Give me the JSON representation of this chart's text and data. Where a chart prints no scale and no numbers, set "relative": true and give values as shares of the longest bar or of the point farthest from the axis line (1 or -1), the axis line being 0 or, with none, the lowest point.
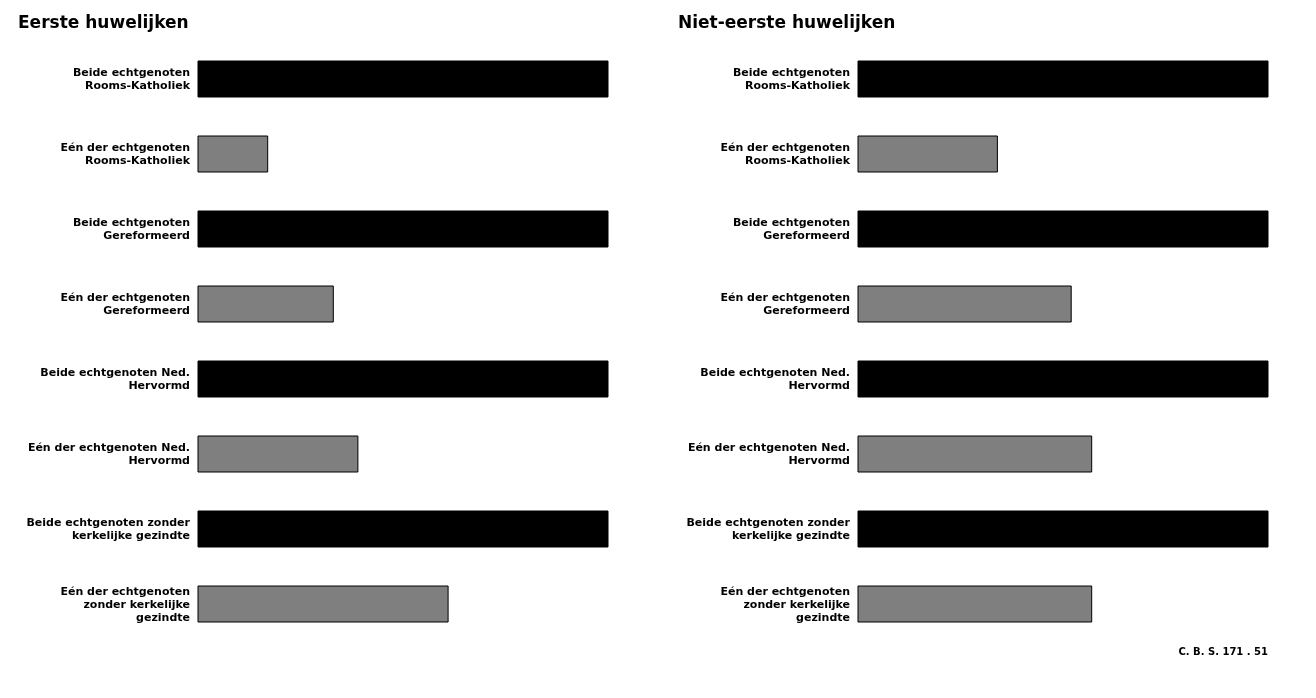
{
  "chart_data": [
    {
      "type": "bar",
      "title": "Eerste huwelijken",
      "orientation": "horizontal",
      "relative": true,
      "categories": [
        "Beide echtgenoten Rooms-Katholiek",
        "Eén der echtgenoten Rooms-Katholiek",
        "Beide echtgenoten Gereformeerd",
        "Eén der echtgenoten Gereformeerd",
        "Beide echtgenoten Ned. Hervormd",
        "Eén der echtgenoten Ned. Hervormd",
        "Beide echtgenoten zonder kerkelijke gezindte",
        "Eén der echtgenoten zonder kerkelijke gezindte"
      ],
      "values": [
        1,
        0.17,
        1,
        0.33,
        1,
        0.39,
        1,
        0.61
      ],
      "colors": [
        "#000000",
        "#7f7f7f",
        "#000000",
        "#7f7f7f",
        "#000000",
        "#7f7f7f",
        "#000000",
        "#7f7f7f"
      ]
    },
    {
      "type": "bar",
      "title": "Niet-eerste huwelijken",
      "orientation": "horizontal",
      "relative": true,
      "categories": [
        "Beide echtgenoten Rooms-Katholiek",
        "Eén der echtgenoten Rooms-Katholiek",
        "Beide echtgenoten Gereformeerd",
        "Eén der echtgenoten Gereformeerd",
        "Beide echtgenoten Ned. Hervormd",
        "Eén der echtgenoten Ned. Hervormd",
        "Beide echtgenoten zonder kerkelijke gezindte",
        "Eén der echtgenoten zonder kerkelijke gezindte"
      ],
      "values": [
        1,
        0.34,
        1,
        0.52,
        1,
        0.57,
        1,
        0.57
      ],
      "colors": [
        "#000000",
        "#7f7f7f",
        "#000000",
        "#7f7f7f",
        "#000000",
        "#7f7f7f",
        "#000000",
        "#7f7f7f"
      ],
      "annotations": [
        "C. B. S. 171 . 51"
      ]
    }
  ]
}
